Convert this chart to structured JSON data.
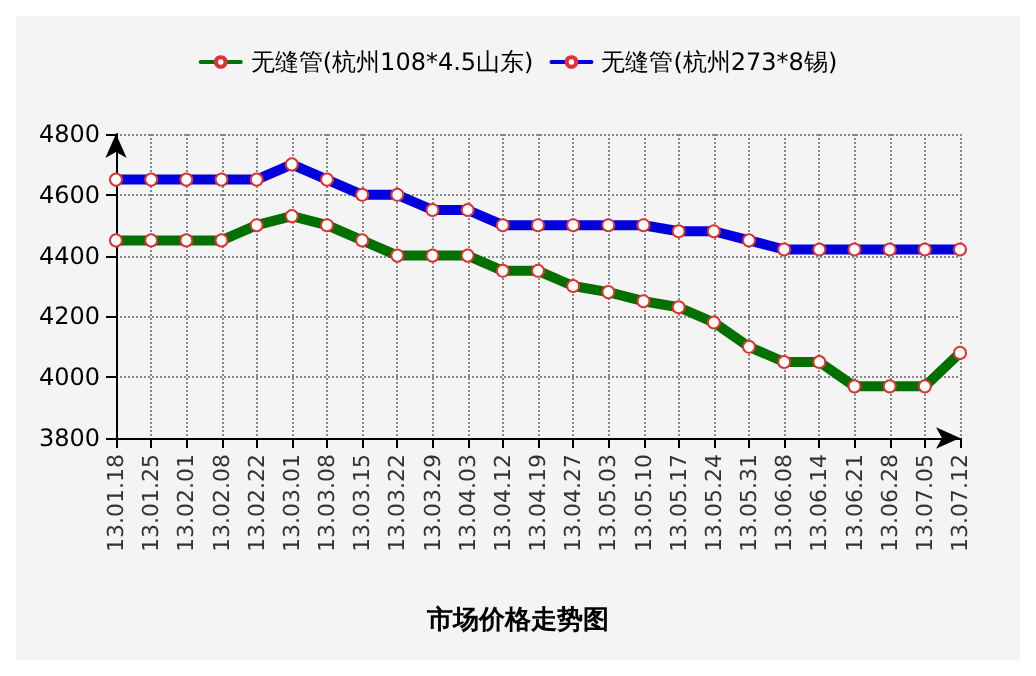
{
  "chart_data": {
    "type": "line",
    "title": "市场价格走势图",
    "categories": [
      "13.01.18",
      "13.01.25",
      "13.02.01",
      "13.02.08",
      "13.02.22",
      "13.03.01",
      "13.03.08",
      "13.03.15",
      "13.03.22",
      "13.03.29",
      "13.04.03",
      "13.04.12",
      "13.04.19",
      "13.04.27",
      "13.05.03",
      "13.05.10",
      "13.05.17",
      "13.05.24",
      "13.05.31",
      "13.06.08",
      "13.06.14",
      "13.06.21",
      "13.06.28",
      "13.07.05",
      "13.07.12"
    ],
    "series": [
      {
        "name": "无缝管(杭州108*4.5山东)",
        "color": "#007000",
        "values": [
          4450,
          4450,
          4450,
          4450,
          4500,
          4530,
          4500,
          4450,
          4400,
          4400,
          4400,
          4350,
          4350,
          4300,
          4280,
          4250,
          4230,
          4180,
          4100,
          4050,
          4050,
          3970,
          3970,
          3970,
          4080
        ]
      },
      {
        "name": "无缝管(杭州273*8锡)",
        "color": "#0000dd",
        "values": [
          4650,
          4650,
          4650,
          4650,
          4650,
          4700,
          4650,
          4600,
          4600,
          4550,
          4550,
          4500,
          4500,
          4500,
          4500,
          4500,
          4480,
          4480,
          4450,
          4420,
          4420,
          4420,
          4420,
          4420,
          4420
        ]
      }
    ],
    "ylim": [
      3800,
      4800
    ],
    "yticks": [
      3800,
      4000,
      4200,
      4400,
      4600,
      4800
    ],
    "grid": true,
    "legend": "top",
    "marker": "circle",
    "line_style": "solid"
  }
}
